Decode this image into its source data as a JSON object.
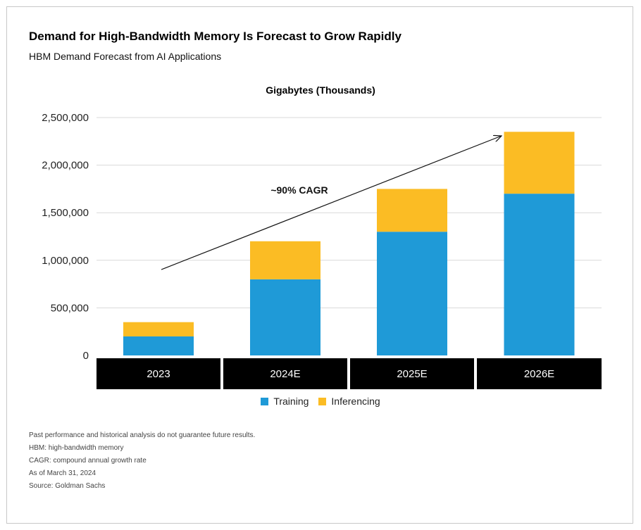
{
  "header": {
    "title": "Demand for High-Bandwidth Memory Is Forecast to Grow Rapidly",
    "subtitle": "HBM Demand Forecast from AI Applications"
  },
  "chart_data": {
    "type": "bar",
    "stacked": true,
    "title": "Gigabytes (Thousands)",
    "categories": [
      "2023",
      "2024E",
      "2025E",
      "2026E"
    ],
    "series": [
      {
        "name": "Training",
        "values": [
          200000,
          800000,
          1300000,
          1700000
        ],
        "color": "#1f9ad7"
      },
      {
        "name": "Inferencing",
        "values": [
          150000,
          400000,
          450000,
          650000
        ],
        "color": "#fbbc24"
      }
    ],
    "ylim": [
      0,
      2500000
    ],
    "yticks": [
      0,
      500000,
      1000000,
      1500000,
      2000000,
      2500000
    ],
    "ytick_labels": [
      "0",
      "500,000",
      "1,000,000",
      "1,500,000",
      "2,000,000",
      "2,500,000"
    ],
    "grid": true,
    "legend_position": "bottom-center",
    "annotation": {
      "text": "~90% CAGR",
      "type": "arrow",
      "from_category": "2023",
      "to_category": "2026E"
    }
  },
  "notes": [
    "Past performance and historical analysis do not guarantee future results.",
    "HBM: high-bandwidth memory",
    "CAGR: compound annual growth rate",
    "As of March 31, 2024",
    "Source: Goldman Sachs"
  ]
}
